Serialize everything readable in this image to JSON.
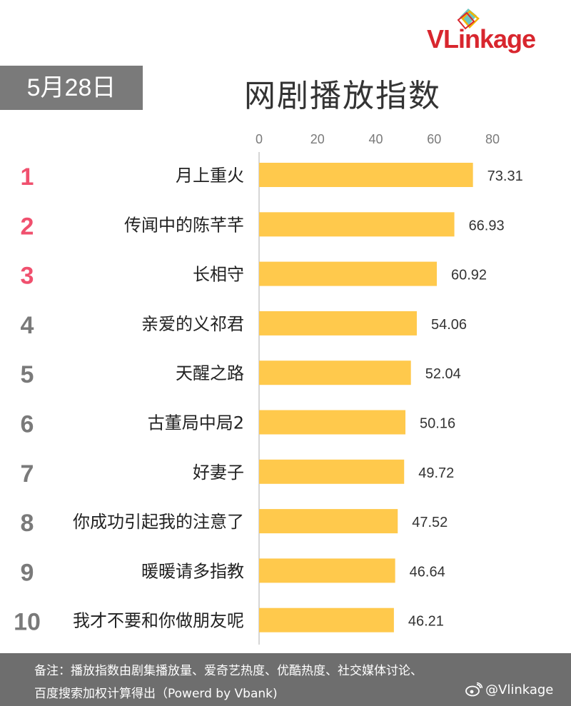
{
  "header": {
    "brand": "VLinkage",
    "date": "5月28日",
    "title": "网剧播放指数"
  },
  "chart_data": {
    "type": "bar",
    "orientation": "horizontal",
    "title": "网剧播放指数",
    "xlim": [
      0,
      80
    ],
    "xticks": [
      0,
      20,
      40,
      60,
      80
    ],
    "grid": false,
    "bar_color": "#ffc94c",
    "rank_colors": {
      "top3": "#f0506e",
      "rest": "#7a7a7a"
    },
    "ranks": [
      "1",
      "2",
      "3",
      "4",
      "5",
      "6",
      "7",
      "8",
      "9",
      "10"
    ],
    "categories": [
      "月上重火",
      "传闻中的陈芊芊",
      "长相守",
      "亲爱的义祁君",
      "天醒之路",
      "古董局中局2",
      "好妻子",
      "你成功引起我的注意了",
      "暖暖请多指教",
      "我才不要和你做朋友呢"
    ],
    "values": [
      73.31,
      66.93,
      60.92,
      54.06,
      52.04,
      50.16,
      49.72,
      47.52,
      46.64,
      46.21
    ],
    "value_labels": [
      "73.31",
      "66.93",
      "60.92",
      "54.06",
      "52.04",
      "50.16",
      "49.72",
      "47.52",
      "46.64",
      "46.21"
    ]
  },
  "footer": {
    "note_line1": "备注：播放指数由剧集播放量、爱奇艺热度、优酷热度、社交媒体讨论、",
    "note_line2": "百度搜索加权计算得出（Powerd by Vbank)",
    "weibo_handle": "@Vlinkage",
    "weibo_icon": "weibo-icon"
  }
}
